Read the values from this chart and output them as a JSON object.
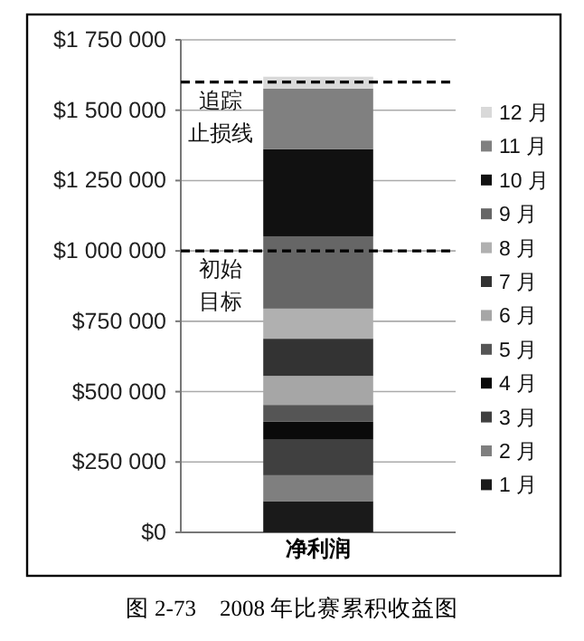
{
  "chart_data": {
    "type": "bar",
    "stacked": true,
    "categories": [
      "净利润"
    ],
    "series": [
      {
        "name": "1 月",
        "color": "#1a1a1a",
        "values": [
          111000
        ]
      },
      {
        "name": "2 月",
        "color": "#7f7f7f",
        "values": [
          92000
        ]
      },
      {
        "name": "3 月",
        "color": "#404040",
        "values": [
          126000
        ]
      },
      {
        "name": "4 月",
        "color": "#0a0a0a",
        "values": [
          64000
        ]
      },
      {
        "name": "5 月",
        "color": "#555555",
        "values": [
          60000
        ]
      },
      {
        "name": "6 月",
        "color": "#a6a6a6",
        "values": [
          103000
        ]
      },
      {
        "name": "7 月",
        "color": "#333333",
        "values": [
          132000
        ]
      },
      {
        "name": "8 月",
        "color": "#b0b0b0",
        "values": [
          107000
        ]
      },
      {
        "name": "9 月",
        "color": "#666666",
        "values": [
          257000
        ]
      },
      {
        "name": "10 月",
        "color": "#111111",
        "values": [
          310000
        ]
      },
      {
        "name": "11 月",
        "color": "#808080",
        "values": [
          215000
        ]
      },
      {
        "name": "12 月",
        "color": "#d9d9d9",
        "values": [
          42000
        ]
      }
    ],
    "ylim": [
      0,
      1750000
    ],
    "yticks": [
      {
        "value": 0,
        "label": "$0"
      },
      {
        "value": 250000,
        "label": "$250 000"
      },
      {
        "value": 500000,
        "label": "$500 000"
      },
      {
        "value": 750000,
        "label": "$750 000"
      },
      {
        "value": 1000000,
        "label": "$1 000 000"
      },
      {
        "value": 1250000,
        "label": "$1 250 000"
      },
      {
        "value": 1500000,
        "label": "$1 500 000"
      },
      {
        "value": 1750000,
        "label": "$1 750 000"
      }
    ],
    "grid": "y",
    "legend": "right",
    "ref_lines": [
      {
        "axis": "y",
        "value": 1000000,
        "label": "初始目标",
        "line_style": "dashed",
        "color": "#000000"
      },
      {
        "axis": "y",
        "value": 1600000,
        "label": "追踪止损线",
        "line_style": "dashed",
        "color": "#000000"
      }
    ],
    "annotations": [
      "图 2-73　2008 年比赛累积收益图"
    ]
  }
}
